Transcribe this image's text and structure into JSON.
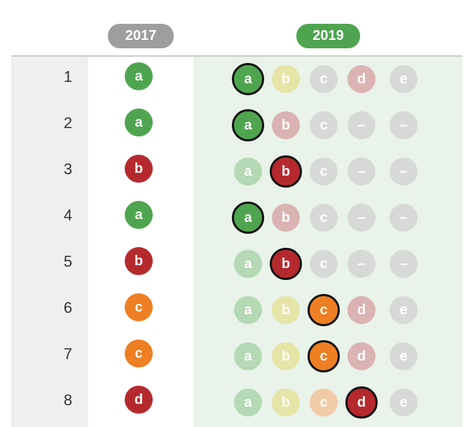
{
  "headers": {
    "y2017": "2017",
    "y2019": "2019"
  },
  "palette": {
    "a": "#4fa54f",
    "b": "#b5292e",
    "c": "#ee7f22",
    "d": "#b5292e",
    "e": "#cfcfcf",
    "a_faded": "#b4d9b4",
    "b_faded_light": "#e6e4a6",
    "b_faded_red": "#dbb3b3",
    "c_faded": "#f1caa8",
    "d_faded": "#dbb3b3",
    "gray_faded": "#d7d9d7"
  },
  "rows": [
    {
      "num": "1",
      "y2017": "a",
      "y2019": [
        {
          "label": "a",
          "selected": true
        },
        {
          "label": "b"
        },
        {
          "label": "c"
        },
        {
          "label": "d"
        },
        {
          "label": "e"
        }
      ]
    },
    {
      "num": "2",
      "y2017": "a",
      "y2019": [
        {
          "label": "a",
          "selected": true
        },
        {
          "label": "b"
        },
        {
          "label": "c"
        },
        {
          "label": "–"
        },
        {
          "label": "–"
        }
      ]
    },
    {
      "num": "3",
      "y2017": "b",
      "y2019": [
        {
          "label": "a"
        },
        {
          "label": "b",
          "selected": true
        },
        {
          "label": "c"
        },
        {
          "label": "–"
        },
        {
          "label": "–"
        }
      ]
    },
    {
      "num": "4",
      "y2017": "a",
      "y2019": [
        {
          "label": "a",
          "selected": true
        },
        {
          "label": "b"
        },
        {
          "label": "c"
        },
        {
          "label": "–"
        },
        {
          "label": "–"
        }
      ]
    },
    {
      "num": "5",
      "y2017": "b",
      "y2019": [
        {
          "label": "a"
        },
        {
          "label": "b",
          "selected": true
        },
        {
          "label": "c"
        },
        {
          "label": "–"
        },
        {
          "label": "–"
        }
      ]
    },
    {
      "num": "6",
      "y2017": "c",
      "y2019": [
        {
          "label": "a"
        },
        {
          "label": "b"
        },
        {
          "label": "c",
          "selected": true
        },
        {
          "label": "d"
        },
        {
          "label": "e"
        }
      ]
    },
    {
      "num": "7",
      "y2017": "c",
      "y2019": [
        {
          "label": "a"
        },
        {
          "label": "b"
        },
        {
          "label": "c",
          "selected": true
        },
        {
          "label": "d"
        },
        {
          "label": "e"
        }
      ]
    },
    {
      "num": "8",
      "y2017": "d",
      "y2019": [
        {
          "label": "a"
        },
        {
          "label": "b"
        },
        {
          "label": "c"
        },
        {
          "label": "d",
          "selected": true
        },
        {
          "label": "e"
        }
      ]
    }
  ]
}
